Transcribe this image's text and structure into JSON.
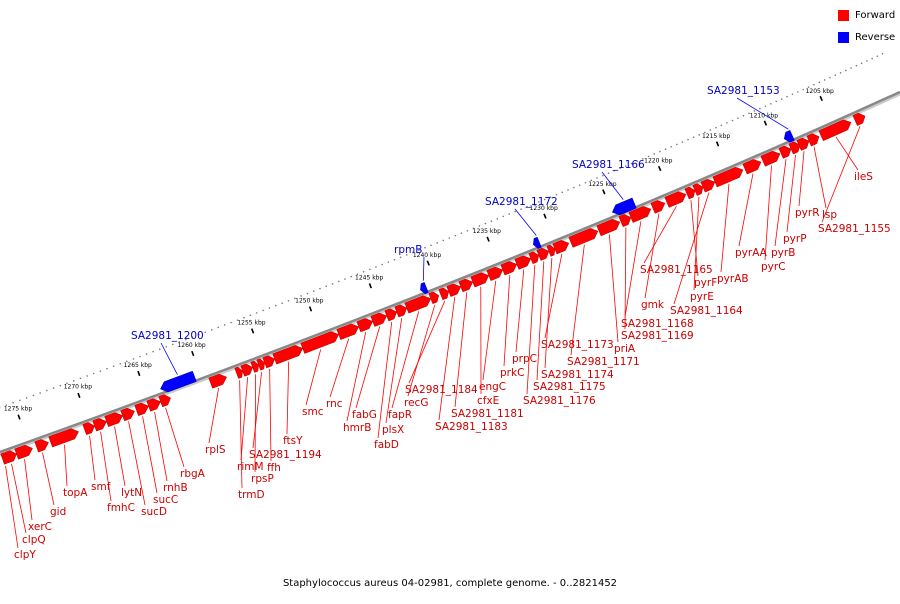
{
  "legend": {
    "forward_label": "Forward",
    "reverse_label": "Reverse",
    "forward_color": "#ff0000",
    "reverse_color": "#0000ff"
  },
  "caption": "Staphylococcus aureus 04-02981, complete genome. - 0..2821452",
  "colors": {
    "forward": "#ff0000",
    "reverse": "#0000ff",
    "label_forward": "#cc0000",
    "label_reverse": "#0000cc",
    "backbone": "#888888"
  },
  "ticks": [
    {
      "label": "1205 kbp"
    },
    {
      "label": "1210 kbp"
    },
    {
      "label": "1215 kbp"
    },
    {
      "label": "1220 kbp"
    },
    {
      "label": "1225 kbp"
    },
    {
      "label": "1230 kbp"
    },
    {
      "label": "1235 kbp"
    },
    {
      "label": "1240 kbp"
    },
    {
      "label": "1245 kbp"
    },
    {
      "label": "1250 kbp"
    },
    {
      "label": "1255 kbp"
    },
    {
      "label": "1260 kbp"
    },
    {
      "label": "1265 kbp"
    },
    {
      "label": "1270 kbp"
    },
    {
      "label": "1275 kbp"
    }
  ],
  "reverse_genes": [
    "SA2981_1153",
    "SA2981_1166",
    "SA2981_1172",
    "rpmB",
    "SA2981_1200"
  ],
  "forward_genes": [
    "ileS",
    "SA2981_1155",
    "lsp",
    "pyrR",
    "pyrP",
    "pyrB",
    "pyrC",
    "pyrAA",
    "pyrAB",
    "SA2981_1164",
    "pyrE",
    "pyrF",
    "SA2981_1165",
    "gmk",
    "SA2981_1168",
    "SA2981_1169",
    "priA",
    "SA2981_1171",
    "SA2981_1173",
    "SA2981_1174",
    "SA2981_1175",
    "SA2981_1176",
    "prpC",
    "prkC",
    "engC",
    "cfxE",
    "SA2981_1181",
    "SA2981_1183",
    "SA2981_1184",
    "recG",
    "fapR",
    "plsX",
    "fabD",
    "fabG",
    "hmrB",
    "rnc",
    "smc",
    "ftsY",
    "ffh",
    "SA2981_1194",
    "rpsP",
    "rimM",
    "trmD",
    "rplS",
    "rbgA",
    "rnhB",
    "sucC",
    "sucD",
    "lytN",
    "fmhC",
    "smf",
    "topA",
    "gid",
    "xerC",
    "clpQ",
    "clpY"
  ]
}
